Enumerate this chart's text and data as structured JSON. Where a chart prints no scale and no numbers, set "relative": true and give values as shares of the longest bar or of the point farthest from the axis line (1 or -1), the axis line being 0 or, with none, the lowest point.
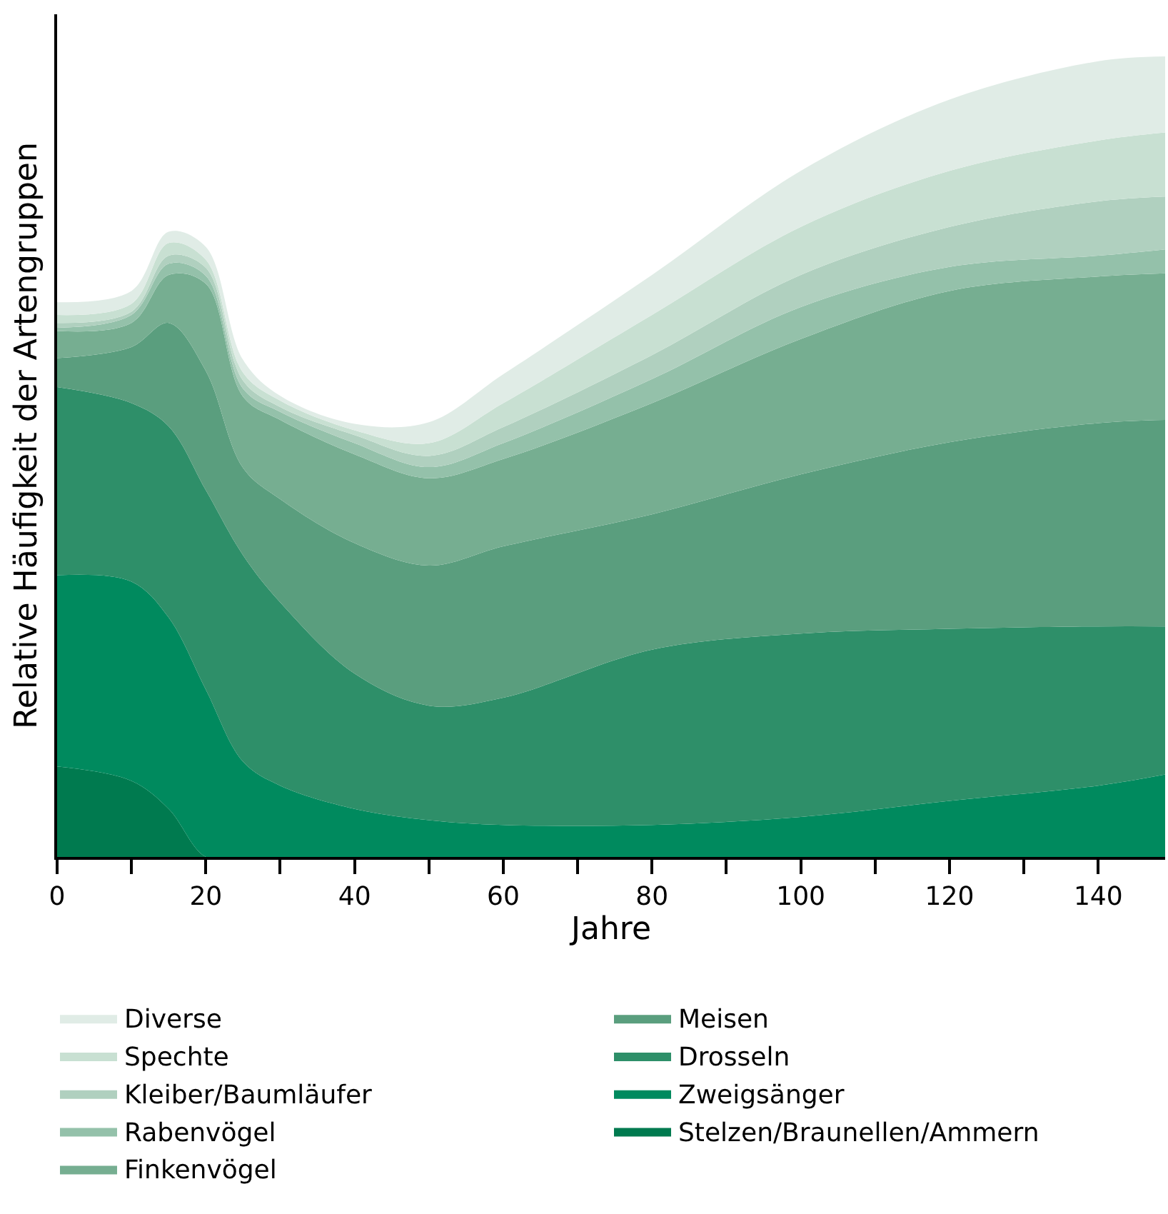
{
  "chart_data": {
    "type": "area",
    "stacked": true,
    "relative": true,
    "xlabel": "Jahre",
    "ylabel": "Relative Häufigkeit der Artengruppen",
    "legend": "bottom",
    "x": [
      0,
      10,
      15,
      20,
      25,
      30,
      40,
      50,
      60,
      80,
      100,
      120,
      140,
      149
    ],
    "xlim": [
      0,
      149
    ],
    "xticks": [
      0,
      {
        "value": 10,
        "label": null
      },
      20,
      {
        "value": 30,
        "label": null
      },
      40,
      {
        "value": 50,
        "label": null
      },
      60,
      {
        "value": 70,
        "label": null
      },
      80,
      {
        "value": 90,
        "label": null
      },
      100,
      {
        "value": 110,
        "label": null
      },
      120,
      {
        "value": 130,
        "label": null
      },
      140
    ],
    "series": [
      {
        "name": "Stelzen/Braunellen/Ammern",
        "color": "#007a4f",
        "values": [
          0.113,
          0.095,
          0.06,
          0,
          0,
          0,
          0,
          0,
          0,
          0,
          0,
          0,
          0,
          0
        ]
      },
      {
        "name": "Zweigsänger",
        "color": "#008a5e",
        "values": [
          0.239,
          0.249,
          0.239,
          0.209,
          0.119,
          0.089,
          0.06,
          0.046,
          0.04,
          0.04,
          0.05,
          0.07,
          0.089,
          0.103
        ]
      },
      {
        "name": "Drosseln",
        "color": "#2e8f69",
        "values": [
          0.235,
          0.223,
          0.239,
          0.249,
          0.258,
          0.229,
          0.169,
          0.143,
          0.159,
          0.219,
          0.229,
          0.215,
          0.199,
          0.185
        ]
      },
      {
        "name": "Meisen",
        "color": "#5a9e7e",
        "values": [
          0.036,
          0.07,
          0.129,
          0.149,
          0.109,
          0.129,
          0.163,
          0.175,
          0.189,
          0.169,
          0.199,
          0.233,
          0.254,
          0.258
        ]
      },
      {
        "name": "Finkenvögel",
        "color": "#76ae91",
        "values": [
          0.034,
          0.03,
          0.06,
          0.109,
          0.089,
          0.099,
          0.111,
          0.109,
          0.109,
          0.139,
          0.169,
          0.189,
          0.183,
          0.183
        ]
      },
      {
        "name": "Rabenvögel",
        "color": "#94c1aa",
        "values": [
          0.004,
          0.01,
          0.014,
          0.01,
          0.01,
          0.01,
          0.014,
          0.014,
          0.02,
          0.03,
          0.04,
          0.03,
          0.026,
          0.03
        ]
      },
      {
        "name": "Kleiber/Baumläufer",
        "color": "#b0d0bf",
        "values": [
          0.006,
          0.004,
          0.01,
          0.01,
          0.01,
          0.006,
          0.01,
          0.014,
          0.02,
          0.03,
          0.04,
          0.05,
          0.068,
          0.066
        ]
      },
      {
        "name": "Spechte",
        "color": "#c8e0d2",
        "values": [
          0.01,
          0.01,
          0.016,
          0.01,
          0.01,
          0.008,
          0.006,
          0.016,
          0.03,
          0.05,
          0.06,
          0.07,
          0.076,
          0.08
        ]
      },
      {
        "name": "Diverse",
        "color": "#e0ece6",
        "values": [
          0.016,
          0.016,
          0.014,
          0.016,
          0.016,
          0.006,
          0.008,
          0.026,
          0.036,
          0.05,
          0.07,
          0.089,
          0.099,
          0.095
        ]
      }
    ]
  }
}
